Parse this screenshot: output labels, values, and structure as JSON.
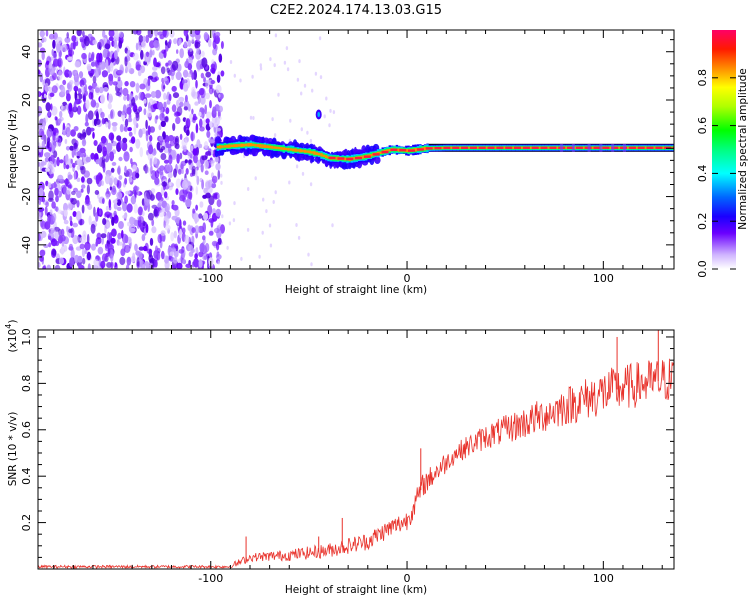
{
  "title": "C2E2.2024.174.13.03.G15",
  "chart_data": [
    {
      "type": "heatmap",
      "xlabel": "Height of straight line (km)",
      "ylabel": "Frequency (Hz)",
      "xlim": [
        -188,
        136
      ],
      "ylim": [
        -50,
        49
      ],
      "x_ticks": [
        -100,
        0,
        100
      ],
      "y_ticks": [
        -40,
        -20,
        0,
        20,
        40
      ],
      "colorbar": {
        "label": "Normalized spectral amplitude",
        "range": [
          0,
          1
        ],
        "ticks": [
          0.0,
          0.2,
          0.4,
          0.6,
          0.8
        ]
      },
      "noise_region_x": [
        -188,
        -97
      ],
      "ridge": [
        {
          "x": -97,
          "y": 0.5
        },
        {
          "x": -90,
          "y": 1.0
        },
        {
          "x": -80,
          "y": 1.5
        },
        {
          "x": -70,
          "y": 0.5
        },
        {
          "x": -60,
          "y": -0.5
        },
        {
          "x": -50,
          "y": -1.5
        },
        {
          "x": -45,
          "y": -2.5
        },
        {
          "x": -40,
          "y": -4.0
        },
        {
          "x": -30,
          "y": -4.5
        },
        {
          "x": -22,
          "y": -3.5
        },
        {
          "x": -15,
          "y": -2.0
        },
        {
          "x": -8,
          "y": -0.5
        },
        {
          "x": 0,
          "y": -1.0
        },
        {
          "x": 5,
          "y": -0.5
        },
        {
          "x": 10,
          "y": 0.0
        },
        {
          "x": 20,
          "y": 0.2
        },
        {
          "x": 60,
          "y": 0.2
        },
        {
          "x": 100,
          "y": 0.2
        },
        {
          "x": 136,
          "y": 0.2
        }
      ]
    },
    {
      "type": "line",
      "xlabel": "Height of straight line (km)",
      "ylabel": "SNR (10 * v/v)",
      "y_multiplier": "(x10",
      "y_multiplier_exp": "4",
      "y_multiplier_close": ")",
      "xlim": [
        -188,
        136
      ],
      "ylim": [
        0,
        1.03
      ],
      "x_ticks": [
        -100,
        0,
        100
      ],
      "y_ticks": [
        0.2,
        0.4,
        0.6,
        0.8,
        1.0
      ],
      "color": "#e8312a",
      "series_trend": [
        {
          "x": -188,
          "y": 0.01
        },
        {
          "x": -90,
          "y": 0.01
        },
        {
          "x": -85,
          "y": 0.03
        },
        {
          "x": -80,
          "y": 0.05
        },
        {
          "x": -60,
          "y": 0.06
        },
        {
          "x": -40,
          "y": 0.08
        },
        {
          "x": -20,
          "y": 0.12
        },
        {
          "x": -10,
          "y": 0.17
        },
        {
          "x": 0,
          "y": 0.21
        },
        {
          "x": 4,
          "y": 0.28
        },
        {
          "x": 8,
          "y": 0.36
        },
        {
          "x": 15,
          "y": 0.42
        },
        {
          "x": 25,
          "y": 0.5
        },
        {
          "x": 40,
          "y": 0.57
        },
        {
          "x": 60,
          "y": 0.63
        },
        {
          "x": 80,
          "y": 0.7
        },
        {
          "x": 100,
          "y": 0.76
        },
        {
          "x": 120,
          "y": 0.8
        },
        {
          "x": 136,
          "y": 0.82
        }
      ],
      "spikes": [
        {
          "x": -82,
          "y": 0.14
        },
        {
          "x": -45,
          "y": 0.14
        },
        {
          "x": -33,
          "y": 0.22
        },
        {
          "x": 7,
          "y": 0.52
        },
        {
          "x": 107,
          "y": 1.0
        },
        {
          "x": 128,
          "y": 1.03
        }
      ]
    }
  ]
}
